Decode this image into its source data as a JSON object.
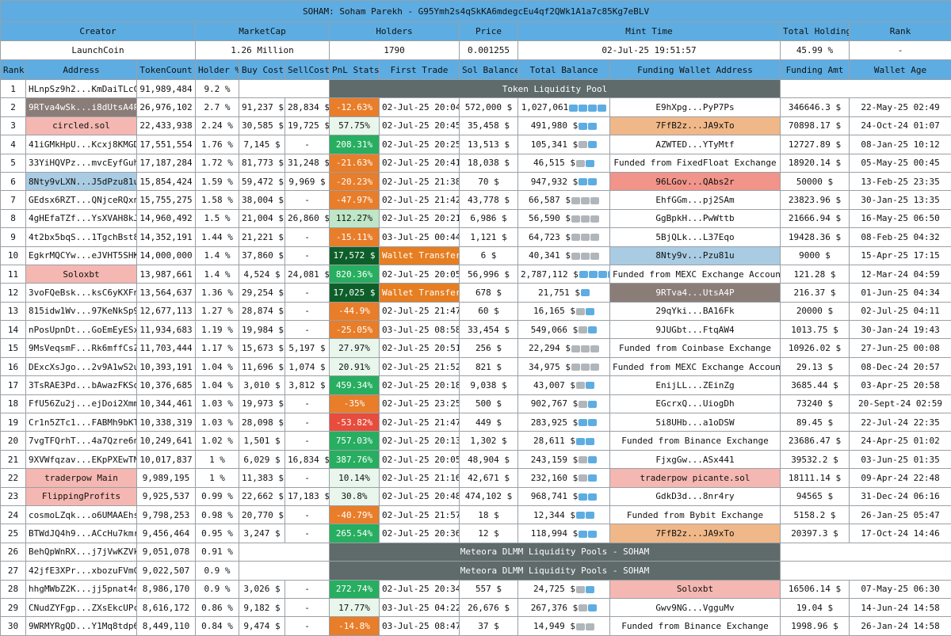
{
  "title": "SOHAM: Soham Parekh - G95Ymh2s4qSkKA6mdegcEu4qf2QWk1A1a7c85Kg7eBLV",
  "summary": {
    "headers": [
      "Creator",
      "MarketCap",
      "Holders",
      "Price",
      "Mint Time",
      "Total Holding",
      "Rank"
    ],
    "values": [
      "LaunchCoin",
      "1.26 Million",
      "1790",
      "0.001255",
      "02-Jul-25 19:51:57",
      "45.99 %",
      "-"
    ]
  },
  "columns": [
    "Rank",
    "Address",
    "TokenCount",
    "Holder %",
    "Buy Cost",
    "SellCost",
    "PnL Stats",
    "First Trade",
    "Sol Balance",
    "Total Balance",
    "Funding Wallet Address",
    "Funding Amt",
    "Wallet Age"
  ],
  "pools": {
    "token": "Token Liquidity Pool",
    "meteora": "Meteora DLMM Liquidity Pools - SOHAM"
  },
  "rows": [
    {
      "rank": "1",
      "addr": "HLnpSz9h2...KmDaiTLcC",
      "count": "91,989,484",
      "pct": "9.2 %"
    },
    {
      "rank": "2",
      "addr": "9RTva4wSk...i8dUtsA4P",
      "count": "26,976,102",
      "pct": "2.7 %",
      "buy": "91,237 $",
      "sell": "28,834 $",
      "pnl": "-12.63%",
      "first": "02-Jul-25 20:04",
      "sol": "572,000 $",
      "total": "1,027,061",
      "icons": "wwww",
      "fund": "E9hXpg...PyP7Ps",
      "famt": "346646.3 $",
      "age": "22-May-25 02:49"
    },
    {
      "rank": "3",
      "addr": "circled.sol",
      "count": "22,433,938",
      "pct": "2.24 %",
      "buy": "30,585 $",
      "sell": "19,725 $",
      "pnl": "57.75%",
      "first": "02-Jul-25 20:45",
      "sol": "35,458 $",
      "total": "491,980 $",
      "icons": "ww",
      "fund": "7FfB2z...JA9xTo",
      "famt": "70898.17 $",
      "age": "24-Oct-24 01:07"
    },
    {
      "rank": "4",
      "addr": "41iGMkHpU...Kcxj8KMGD",
      "count": "17,551,554",
      "pct": "1.76 %",
      "buy": "7,145 $",
      "sell": "-",
      "pnl": "208.31%",
      "first": "02-Jul-25 20:25",
      "sol": "13,513 $",
      "total": "105,341 $",
      "icons": "gw",
      "fund": "AZWTED...YTyMtf",
      "famt": "12727.89 $",
      "age": "08-Jan-25 10:12"
    },
    {
      "rank": "5",
      "addr": "33YiHQVPz...mvcEyfGuh",
      "count": "17,187,284",
      "pct": "1.72 %",
      "buy": "81,773 $",
      "sell": "31,248 $",
      "pnl": "-21.63%",
      "first": "02-Jul-25 20:41",
      "sol": "18,038 $",
      "total": "46,515 $",
      "icons": "gw",
      "fund": "Funded from FixedFloat Exchange",
      "famt": "18920.14 $",
      "age": "05-May-25 00:45"
    },
    {
      "rank": "6",
      "addr": "8Nty9vLXN...J5dPzu81u",
      "count": "15,854,424",
      "pct": "1.59 %",
      "buy": "59,472 $",
      "sell": "9,969 $",
      "pnl": "-20.23%",
      "first": "02-Jul-25 21:38",
      "sol": "70 $",
      "total": "947,932 $",
      "icons": "ww",
      "fund": "96LGov...QAbs2r",
      "famt": "50000 $",
      "age": "13-Feb-25 23:35"
    },
    {
      "rank": "7",
      "addr": "GEdsx6RZT...QNjceRQxn",
      "count": "15,755,275",
      "pct": "1.58 %",
      "buy": "38,004 $",
      "sell": "-",
      "pnl": "-47.97%",
      "first": "02-Jul-25 21:42",
      "sol": "43,778 $",
      "total": "66,587 $",
      "icons": "ggg",
      "fund": "EhfGGm...pj2SAm",
      "famt": "23823.96 $",
      "age": "30-Jan-25 13:35"
    },
    {
      "rank": "8",
      "addr": "4gHEfaTZf...YsXVAH8kJ",
      "count": "14,960,492",
      "pct": "1.5 %",
      "buy": "21,004 $",
      "sell": "26,860 $",
      "pnl": "112.27%",
      "first": "02-Jul-25 20:21",
      "sol": "6,986 $",
      "total": "56,590 $",
      "icons": "ggg",
      "fund": "GgBpkH...PwWttb",
      "famt": "21666.94 $",
      "age": "16-May-25 06:50"
    },
    {
      "rank": "9",
      "addr": "4t2bx5bqS...1TgchBst8",
      "count": "14,352,191",
      "pct": "1.44 %",
      "buy": "21,221 $",
      "sell": "-",
      "pnl": "-15.11%",
      "first": "03-Jul-25 00:44",
      "sol": "1,121 $",
      "total": "64,723 $",
      "icons": "ggg",
      "fund": "5BjQLk...L37Eqo",
      "famt": "19428.36 $",
      "age": "08-Feb-25 04:32"
    },
    {
      "rank": "10",
      "addr": "EgkrMQCYw...eJVHT5SHK",
      "count": "14,000,000",
      "pct": "1.4 %",
      "buy": "37,860 $",
      "sell": "-",
      "pnl": "17,572 $",
      "first": "Wallet Transfer",
      "sol": "6 $",
      "total": "40,341 $",
      "icons": "ggg",
      "fund": "8Nty9v...Pzu81u",
      "famt": "9000 $",
      "age": "15-Apr-25 17:15"
    },
    {
      "rank": "11",
      "addr": "Soloxbt",
      "count": "13,987,661",
      "pct": "1.4 %",
      "buy": "4,524 $",
      "sell": "24,081 $",
      "pnl": "820.36%",
      "first": "02-Jul-25 20:05",
      "sol": "56,996 $",
      "total": "2,787,112 $",
      "icons": "wwww",
      "fund": "Funded from MEXC Exchange Account",
      "famt": "121.28 $",
      "age": "12-Mar-24 04:59"
    },
    {
      "rank": "12",
      "addr": "3voFQeBsk...ksC6yKXFn",
      "count": "13,564,637",
      "pct": "1.36 %",
      "buy": "29,254 $",
      "sell": "-",
      "pnl": "17,025 $",
      "first": "Wallet Transfer",
      "sol": "678 $",
      "total": "21,751 $",
      "icons": "w",
      "fund": "9RTva4...UtsA4P",
      "famt": "216.37 $",
      "age": "01-Jun-25 04:34"
    },
    {
      "rank": "13",
      "addr": "815idw1Wv...97KeNkSp9",
      "count": "12,677,113",
      "pct": "1.27 %",
      "buy": "28,874 $",
      "sell": "-",
      "pnl": "-44.9%",
      "first": "02-Jul-25 21:47",
      "sol": "60 $",
      "total": "16,165 $",
      "icons": "gw",
      "fund": "29qYki...BA16Fk",
      "famt": "20000 $",
      "age": "02-Jul-25 04:11"
    },
    {
      "rank": "14",
      "addr": "nPosUpnDt...GoEmEyESx",
      "count": "11,934,683",
      "pct": "1.19 %",
      "buy": "19,984 $",
      "sell": "-",
      "pnl": "-25.05%",
      "first": "03-Jul-25 08:58",
      "sol": "33,454 $",
      "total": "549,066 $",
      "icons": "gw",
      "fund": "9JUGbt...FtqAW4",
      "famt": "1013.75 $",
      "age": "30-Jan-24 19:43"
    },
    {
      "rank": "15",
      "addr": "9MsVeqsmF...Rk6mffCsZ",
      "count": "11,703,444",
      "pct": "1.17 %",
      "buy": "15,673 $",
      "sell": "5,197 $",
      "pnl": "27.97%",
      "first": "02-Jul-25 20:51",
      "sol": "256 $",
      "total": "22,294 $",
      "icons": "ggg",
      "fund": "Funded from Coinbase Exchange",
      "famt": "10926.02 $",
      "age": "27-Jun-25 00:08"
    },
    {
      "rank": "16",
      "addr": "DExcXsJgo...2v9A1wS2u",
      "count": "10,393,191",
      "pct": "1.04 %",
      "buy": "11,696 $",
      "sell": "1,074 $",
      "pnl": "20.91%",
      "first": "02-Jul-25 21:52",
      "sol": "821 $",
      "total": "34,975 $",
      "icons": "ggg",
      "fund": "Funded from MEXC Exchange Account",
      "famt": "29.13 $",
      "age": "08-Dec-24 20:57"
    },
    {
      "rank": "17",
      "addr": "3TsRAE3Pd...bAwazFKSq",
      "count": "10,376,685",
      "pct": "1.04 %",
      "buy": "3,010 $",
      "sell": "3,812 $",
      "pnl": "459.34%",
      "first": "02-Jul-25 20:18",
      "sol": "9,038 $",
      "total": "43,007 $",
      "icons": "gw",
      "fund": "EnijLL...ZEinZg",
      "famt": "3685.44 $",
      "age": "03-Apr-25 20:58"
    },
    {
      "rank": "18",
      "addr": "FfU56Zu2j...ejDoi2Xmm",
      "count": "10,344,461",
      "pct": "1.03 %",
      "buy": "19,973 $",
      "sell": "-",
      "pnl": "-35%",
      "first": "02-Jul-25 23:25",
      "sol": "500 $",
      "total": "902,767 $",
      "icons": "gw",
      "fund": "EGcrxQ...UiogDh",
      "famt": "73240 $",
      "age": "20-Sept-24 02:59"
    },
    {
      "rank": "19",
      "addr": "Cr1n5ZTc1...FABMh9bKT",
      "count": "10,338,319",
      "pct": "1.03 %",
      "buy": "28,098 $",
      "sell": "-",
      "pnl": "-53.82%",
      "first": "02-Jul-25 21:47",
      "sol": "449 $",
      "total": "283,925 $",
      "icons": "ww",
      "fund": "5i8UHb...a1oDSW",
      "famt": "89.45 $",
      "age": "22-Jul-24 22:35"
    },
    {
      "rank": "20",
      "addr": "7vgTFQrhT...4a7Qzre6n",
      "count": "10,249,641",
      "pct": "1.02 %",
      "buy": "1,501 $",
      "sell": "-",
      "pnl": "757.03%",
      "first": "02-Jul-25 20:13",
      "sol": "1,302 $",
      "total": "28,611 $",
      "icons": "ww",
      "fund": "Funded from Binance Exchange",
      "famt": "23686.47 $",
      "age": "24-Apr-25 01:02"
    },
    {
      "rank": "21",
      "addr": "9XVWfqzav...EKpPXEwTN",
      "count": "10,017,837",
      "pct": "1 %",
      "buy": "6,029 $",
      "sell": "16,834 $",
      "pnl": "387.76%",
      "first": "02-Jul-25 20:05",
      "sol": "48,904 $",
      "total": "243,159 $",
      "icons": "gw",
      "fund": "FjxgGw...ASx441",
      "famt": "39532.2 $",
      "age": "03-Jun-25 01:35"
    },
    {
      "rank": "22",
      "addr": "traderpow Main",
      "count": "9,989,195",
      "pct": "1 %",
      "buy": "11,383 $",
      "sell": "-",
      "pnl": "10.14%",
      "first": "02-Jul-25 21:16",
      "sol": "42,671 $",
      "total": "232,160 $",
      "icons": "gw",
      "fund": "traderpow picante.sol",
      "famt": "18111.14 $",
      "age": "09-Apr-24 22:48"
    },
    {
      "rank": "23",
      "addr": "FlippingProfits",
      "count": "9,925,537",
      "pct": "0.99 %",
      "buy": "22,662 $",
      "sell": "17,183 $",
      "pnl": "30.8%",
      "first": "02-Jul-25 20:48",
      "sol": "474,102 $",
      "total": "968,741 $",
      "icons": "ww",
      "fund": "GdkD3d...8nr4ry",
      "famt": "94565 $",
      "age": "31-Dec-24 06:16"
    },
    {
      "rank": "24",
      "addr": "cosmoLZqk...o6UMAAEhs",
      "count": "9,798,253",
      "pct": "0.98 %",
      "buy": "20,770 $",
      "sell": "-",
      "pnl": "-40.79%",
      "first": "02-Jul-25 21:57",
      "sol": "18 $",
      "total": "12,344 $",
      "icons": "ww",
      "fund": "Funded from Bybit Exchange",
      "famt": "5158.2 $",
      "age": "26-Jan-25 05:47"
    },
    {
      "rank": "25",
      "addr": "BTWdJQ4h9...ACcHu7kmr",
      "count": "9,456,464",
      "pct": "0.95 %",
      "buy": "3,247 $",
      "sell": "-",
      "pnl": "265.54%",
      "first": "02-Jul-25 20:36",
      "sol": "12 $",
      "total": "118,994 $",
      "icons": "ww",
      "fund": "7FfB2z...JA9xTo",
      "famt": "20397.3 $",
      "age": "17-Oct-24 14:46"
    },
    {
      "rank": "26",
      "addr": "BehQpWnRX...j7jVwKZVk",
      "count": "9,051,078",
      "pct": "0.91 %"
    },
    {
      "rank": "27",
      "addr": "42jfE3XPr...xbozuFVmC",
      "count": "9,022,507",
      "pct": "0.9 %"
    },
    {
      "rank": "28",
      "addr": "hhgMWbZ2K...jj5pnat4n",
      "count": "8,986,170",
      "pct": "0.9 %",
      "buy": "3,026 $",
      "sell": "-",
      "pnl": "272.74%",
      "first": "02-Jul-25 20:34",
      "sol": "557 $",
      "total": "24,725 $",
      "icons": "gw",
      "fund": "Soloxbt",
      "famt": "16506.14 $",
      "age": "07-May-25 06:30"
    },
    {
      "rank": "29",
      "addr": "CNudZYFgp...ZXsEkcUPc",
      "count": "8,616,172",
      "pct": "0.86 %",
      "buy": "9,182 $",
      "sell": "-",
      "pnl": "17.77%",
      "first": "03-Jul-25 04:22",
      "sol": "26,676 $",
      "total": "267,376 $",
      "icons": "gw",
      "fund": "Gwv9NG...VgguMv",
      "famt": "19.04 $",
      "age": "14-Jun-24 14:58"
    },
    {
      "rank": "30",
      "addr": "9WRMYRgQD...Y1Mq8tdp6",
      "count": "8,449,110",
      "pct": "0.84 %",
      "buy": "9,474 $",
      "sell": "-",
      "pnl": "-14.8%",
      "first": "03-Jul-25 08:47",
      "sol": "37 $",
      "total": "14,949 $",
      "icons": "gg",
      "fund": "Funded from Binance Exchange",
      "famt": "1998.96 $",
      "age": "26-Jan-24 14:58"
    }
  ],
  "styles": {
    "addr": {
      "2": "hl-gray",
      "3": "hl-pink",
      "6": "hl-blue",
      "11": "hl-pink",
      "22": "hl-pink",
      "23": "hl-pink"
    },
    "fund": {
      "3": "hl-orange",
      "6": "hl-red",
      "10": "hl-blue",
      "12": "hl-gray",
      "22": "hl-pink",
      "25": "hl-orange",
      "28": "hl-pink"
    },
    "pnl": {
      "2": "pnl-neg",
      "3": "pnl-pos1",
      "4": "pnl-pos3",
      "5": "pnl-neg",
      "6": "pnl-neg",
      "7": "pnl-neg",
      "8": "pnl-pos2",
      "9": "pnl-neg",
      "10": "pnl-dark",
      "11": "pnl-pos3",
      "12": "pnl-dark",
      "13": "pnl-neg",
      "14": "pnl-neg",
      "15": "pnl-pos1",
      "16": "pnl-pos1",
      "17": "pnl-pos3",
      "18": "pnl-neg",
      "19": "pnl-big-neg",
      "20": "pnl-pos3",
      "21": "pnl-pos3",
      "22": "pnl-pos1",
      "23": "pnl-pos1",
      "24": "pnl-neg",
      "25": "pnl-pos3",
      "28": "pnl-pos3",
      "29": "pnl-pos1",
      "30": "pnl-neg"
    }
  }
}
